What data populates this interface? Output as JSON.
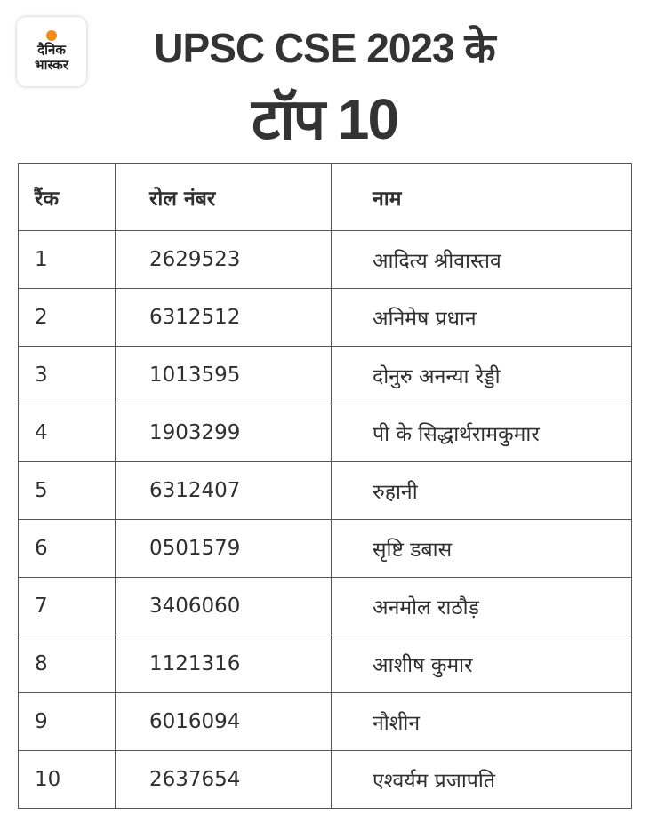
{
  "logo": {
    "line1": "दैनिक",
    "line2": "भास्कर",
    "accent": "#f58a1f"
  },
  "title": {
    "line1": "UPSC CSE 2023 के",
    "line2": "टॉप 10"
  },
  "table": {
    "headers": [
      "रैंक",
      "रोल नंबर",
      "नाम"
    ],
    "rows": [
      [
        "1",
        "2629523",
        "आदित्य श्रीवास्तव"
      ],
      [
        "2",
        "6312512",
        "अनिमेष प्रधान"
      ],
      [
        "3",
        "1013595",
        "दोनुरु अनन्या रेड्डी"
      ],
      [
        "4",
        "1903299",
        "पी के सिद्धार्थरामकुमार"
      ],
      [
        "5",
        "6312407",
        "रुहानी"
      ],
      [
        "6",
        "0501579",
        "सृष्टि डबास"
      ],
      [
        "7",
        "3406060",
        "अनमोल राठौड़"
      ],
      [
        "8",
        "1121316",
        "आशीष कुमार"
      ],
      [
        "9",
        "6016094",
        "नौशीन"
      ],
      [
        "10",
        "2637654",
        "एश्वर्यम प्रजापति"
      ]
    ]
  }
}
